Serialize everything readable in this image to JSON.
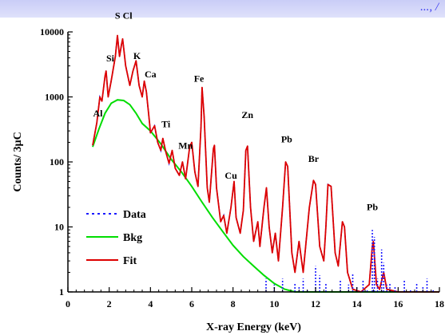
{
  "banner": {
    "text": "..., / "
  },
  "chart_data": {
    "type": "line",
    "title": "",
    "xlabel": "X-ray Energy (keV)",
    "ylabel": "Counts/ 3µC",
    "xlim": [
      0,
      18
    ],
    "ylim": [
      1,
      10000
    ],
    "yscale": "log",
    "xticks": [
      0,
      2,
      4,
      6,
      8,
      10,
      12,
      14,
      16,
      18
    ],
    "yticks": [
      {
        "value": 1,
        "label": "1"
      },
      {
        "value": 10,
        "label": "10"
      },
      {
        "value": 100,
        "label": "100"
      },
      {
        "value": 1000,
        "label": "1000"
      },
      {
        "value": 10000,
        "label": "10000"
      }
    ],
    "grid": false,
    "legend": {
      "position": "bottom-left",
      "entries": [
        {
          "name": "Data",
          "color": "#1a1aff",
          "style": "dotted"
        },
        {
          "name": "Bkg",
          "color": "#00dd00",
          "style": "solid"
        },
        {
          "name": "Fit",
          "color": "#dd0000",
          "style": "solid"
        }
      ]
    },
    "series": [
      {
        "name": "Bkg",
        "color": "#00dd00",
        "points": [
          [
            1.2,
            170
          ],
          [
            1.5,
            320
          ],
          [
            1.8,
            560
          ],
          [
            2.1,
            800
          ],
          [
            2.4,
            900
          ],
          [
            2.7,
            880
          ],
          [
            3.0,
            760
          ],
          [
            3.3,
            560
          ],
          [
            3.6,
            390
          ],
          [
            4.0,
            300
          ],
          [
            4.5,
            190
          ],
          [
            5.0,
            110
          ],
          [
            5.5,
            70
          ],
          [
            6.0,
            42
          ],
          [
            6.5,
            24
          ],
          [
            7.0,
            14
          ],
          [
            7.5,
            8.5
          ],
          [
            8.0,
            5.2
          ],
          [
            8.5,
            3.5
          ],
          [
            9.0,
            2.5
          ],
          [
            9.5,
            1.8
          ],
          [
            10.0,
            1.35
          ],
          [
            10.5,
            1.1
          ],
          [
            11.0,
            1.0
          ],
          [
            11.5,
            1.0
          ],
          [
            18.0,
            1.0
          ]
        ]
      },
      {
        "name": "Fit",
        "color": "#dd0000",
        "points": [
          [
            1.2,
            180
          ],
          [
            1.4,
            400
          ],
          [
            1.55,
            1000
          ],
          [
            1.65,
            860
          ],
          [
            1.8,
            2100
          ],
          [
            1.85,
            2500
          ],
          [
            1.95,
            1000
          ],
          [
            2.1,
            1800
          ],
          [
            2.3,
            4200
          ],
          [
            2.4,
            8800
          ],
          [
            2.5,
            4200
          ],
          [
            2.6,
            6500
          ],
          [
            2.65,
            7800
          ],
          [
            2.8,
            3000
          ],
          [
            3.0,
            1500
          ],
          [
            3.15,
            2500
          ],
          [
            3.3,
            3600
          ],
          [
            3.45,
            1500
          ],
          [
            3.6,
            1000
          ],
          [
            3.7,
            1750
          ],
          [
            3.8,
            1200
          ],
          [
            3.95,
            420
          ],
          [
            4.0,
            280
          ],
          [
            4.2,
            360
          ],
          [
            4.35,
            200
          ],
          [
            4.5,
            150
          ],
          [
            4.6,
            230
          ],
          [
            4.75,
            140
          ],
          [
            4.9,
            95
          ],
          [
            5.05,
            150
          ],
          [
            5.2,
            80
          ],
          [
            5.4,
            62
          ],
          [
            5.55,
            100
          ],
          [
            5.7,
            55
          ],
          [
            5.9,
            170
          ],
          [
            6.0,
            200
          ],
          [
            6.15,
            70
          ],
          [
            6.3,
            42
          ],
          [
            6.45,
            350
          ],
          [
            6.5,
            1400
          ],
          [
            6.6,
            500
          ],
          [
            6.75,
            40
          ],
          [
            6.85,
            24
          ],
          [
            7.05,
            160
          ],
          [
            7.1,
            180
          ],
          [
            7.2,
            40
          ],
          [
            7.4,
            12
          ],
          [
            7.55,
            15
          ],
          [
            7.7,
            8
          ],
          [
            7.9,
            20
          ],
          [
            8.05,
            50
          ],
          [
            8.15,
            14
          ],
          [
            8.35,
            8
          ],
          [
            8.5,
            18
          ],
          [
            8.62,
            150
          ],
          [
            8.7,
            175
          ],
          [
            8.85,
            20
          ],
          [
            9.0,
            6
          ],
          [
            9.2,
            12
          ],
          [
            9.3,
            5
          ],
          [
            9.5,
            20
          ],
          [
            9.62,
            40
          ],
          [
            9.75,
            10
          ],
          [
            9.9,
            4
          ],
          [
            10.05,
            8
          ],
          [
            10.2,
            3
          ],
          [
            10.4,
            20
          ],
          [
            10.55,
            100
          ],
          [
            10.65,
            85
          ],
          [
            10.85,
            4
          ],
          [
            11.0,
            2
          ],
          [
            11.2,
            6
          ],
          [
            11.4,
            2
          ],
          [
            11.7,
            20
          ],
          [
            11.9,
            52
          ],
          [
            12.0,
            45
          ],
          [
            12.2,
            5
          ],
          [
            12.4,
            3
          ],
          [
            12.5,
            10
          ],
          [
            12.6,
            45
          ],
          [
            12.75,
            42
          ],
          [
            12.95,
            4
          ],
          [
            13.1,
            2.5
          ],
          [
            13.3,
            12
          ],
          [
            13.4,
            10
          ],
          [
            13.55,
            2
          ],
          [
            13.8,
            1.1
          ],
          [
            14.2,
            1.0
          ],
          [
            14.6,
            1.3
          ],
          [
            14.75,
            5
          ],
          [
            14.8,
            6
          ],
          [
            14.95,
            1.3
          ],
          [
            15.1,
            1.1
          ],
          [
            15.3,
            2
          ],
          [
            15.45,
            1.1
          ],
          [
            16.0,
            1.0
          ],
          [
            18.0,
            1.0
          ]
        ]
      },
      {
        "name": "Data",
        "color": "#1a1aff",
        "points": [
          [
            9.6,
            1.6
          ],
          [
            10.0,
            1.3
          ],
          [
            10.4,
            1.6
          ],
          [
            10.8,
            1.0
          ],
          [
            11.0,
            1.4
          ],
          [
            11.15,
            1.0
          ],
          [
            11.2,
            1.2
          ],
          [
            11.4,
            1.6
          ],
          [
            11.6,
            1.1
          ],
          [
            12.0,
            2.5
          ],
          [
            12.2,
            1.8
          ],
          [
            12.5,
            1.4
          ],
          [
            12.8,
            1.0
          ],
          [
            13.2,
            1.5
          ],
          [
            13.6,
            1.3
          ],
          [
            13.8,
            1.9
          ],
          [
            14.0,
            1.2
          ],
          [
            14.3,
            1.5
          ],
          [
            14.5,
            1.1
          ],
          [
            14.75,
            9
          ],
          [
            14.85,
            7
          ],
          [
            15.0,
            1.6
          ],
          [
            15.2,
            4.5
          ],
          [
            15.3,
            2.8
          ],
          [
            15.45,
            1.3
          ],
          [
            15.6,
            1.4
          ],
          [
            15.85,
            1.2
          ],
          [
            16.3,
            1.5
          ],
          [
            16.6,
            1.1
          ],
          [
            16.9,
            1.4
          ],
          [
            17.2,
            1.2
          ],
          [
            17.4,
            1.6
          ],
          [
            17.7,
            1.1
          ]
        ]
      }
    ],
    "annotations": [
      {
        "text": "Al",
        "x": 1.45,
        "y": 500
      },
      {
        "text": "Si",
        "x": 2.05,
        "y": 3500
      },
      {
        "text": "S Cl",
        "x": 2.7,
        "y": 16000
      },
      {
        "text": "K",
        "x": 3.35,
        "y": 3800
      },
      {
        "text": "Ca",
        "x": 4.0,
        "y": 2000
      },
      {
        "text": "Ti",
        "x": 4.75,
        "y": 340
      },
      {
        "text": "Mn",
        "x": 5.7,
        "y": 160
      },
      {
        "text": "Fe",
        "x": 6.35,
        "y": 1700
      },
      {
        "text": "Cu",
        "x": 7.9,
        "y": 55
      },
      {
        "text": "Zn",
        "x": 8.7,
        "y": 470
      },
      {
        "text": "Pb",
        "x": 10.6,
        "y": 200
      },
      {
        "text": "Br",
        "x": 11.9,
        "y": 100
      },
      {
        "text": "Pb",
        "x": 14.75,
        "y": 18
      }
    ]
  }
}
